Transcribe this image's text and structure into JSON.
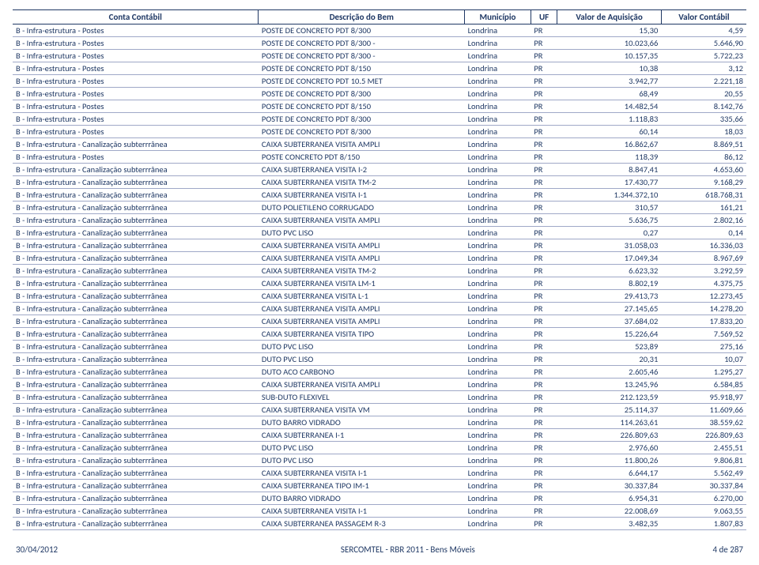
{
  "columns": [
    "Conta Contábil",
    "Descrição do Bem",
    "Município",
    "UF",
    "Valor de Aquisição",
    "Valor Contábil"
  ],
  "rows": [
    [
      "B - Infra-estrutura - Postes",
      "POSTE DE CONCRETO PDT 8/300",
      "Londrina",
      "PR",
      "15,30",
      "4,59"
    ],
    [
      "B - Infra-estrutura - Postes",
      "POSTE DE CONCRETO PDT 8/300 -",
      "Londrina",
      "PR",
      "10.023,66",
      "5.646,90"
    ],
    [
      "B - Infra-estrutura - Postes",
      "POSTE DE CONCRETO PDT 8/300 -",
      "Londrina",
      "PR",
      "10.157,35",
      "5.722,23"
    ],
    [
      "B - Infra-estrutura - Postes",
      "POSTE DE CONCRETO PDT 8/150",
      "Londrina",
      "PR",
      "10,38",
      "3,12"
    ],
    [
      "B - Infra-estrutura - Postes",
      "POSTE DE CONCRETO PDT 10.5 MET",
      "Londrina",
      "PR",
      "3.942,77",
      "2.221,18"
    ],
    [
      "B - Infra-estrutura - Postes",
      "POSTE DE CONCRETO PDT 8/300",
      "Londrina",
      "PR",
      "68,49",
      "20,55"
    ],
    [
      "B - Infra-estrutura - Postes",
      "POSTE DE CONCRETO PDT 8/150",
      "Londrina",
      "PR",
      "14.482,54",
      "8.142,76"
    ],
    [
      "B - Infra-estrutura - Postes",
      "POSTE DE CONCRETO PDT 8/300",
      "Londrina",
      "PR",
      "1.118,83",
      "335,66"
    ],
    [
      "B - Infra-estrutura - Postes",
      "POSTE DE CONCRETO PDT 8/300",
      "Londrina",
      "PR",
      "60,14",
      "18,03"
    ],
    [
      "B - Infra-estrutura - Canalização subterrrânea",
      "CAIXA SUBTERRANEA VISITA AMPLI",
      "Londrina",
      "PR",
      "16.862,67",
      "8.869,51"
    ],
    [
      "B - Infra-estrutura - Postes",
      "POSTE CONCRETO PDT 8/150",
      "Londrina",
      "PR",
      "118,39",
      "86,12"
    ],
    [
      "B - Infra-estrutura - Canalização subterrrânea",
      "CAIXA SUBTERRANEA VISITA I-2",
      "Londrina",
      "PR",
      "8.847,41",
      "4.653,60"
    ],
    [
      "B - Infra-estrutura - Canalização subterrrânea",
      "CAIXA SUBTERRANEA VISITA TM-2",
      "Londrina",
      "PR",
      "17.430,77",
      "9.168,29"
    ],
    [
      "B - Infra-estrutura - Canalização subterrrânea",
      "CAIXA SUBTERRANEA VISITA I-1",
      "Londrina",
      "PR",
      "1.344.372,10",
      "618.768,31"
    ],
    [
      "B - Infra-estrutura - Canalização subterrrânea",
      "DUTO POLIETILENO CORRUGADO",
      "Londrina",
      "PR",
      "310,57",
      "161,21"
    ],
    [
      "B - Infra-estrutura - Canalização subterrrânea",
      "CAIXA SUBTERRANEA VISITA AMPLI",
      "Londrina",
      "PR",
      "5.636,75",
      "2.802,16"
    ],
    [
      "B - Infra-estrutura - Canalização subterrrânea",
      "DUTO PVC LISO",
      "Londrina",
      "PR",
      "0,27",
      "0,14"
    ],
    [
      "B - Infra-estrutura - Canalização subterrrânea",
      "CAIXA SUBTERRANEA VISITA AMPLI",
      "Londrina",
      "PR",
      "31.058,03",
      "16.336,03"
    ],
    [
      "B - Infra-estrutura - Canalização subterrrânea",
      "CAIXA SUBTERRANEA VISITA AMPLI",
      "Londrina",
      "PR",
      "17.049,34",
      "8.967,69"
    ],
    [
      "B - Infra-estrutura - Canalização subterrrânea",
      "CAIXA SUBTERRANEA VISITA TM-2",
      "Londrina",
      "PR",
      "6.623,32",
      "3.292,59"
    ],
    [
      "B - Infra-estrutura - Canalização subterrrânea",
      "CAIXA SUBTERRANEA VISITA LM-1",
      "Londrina",
      "PR",
      "8.802,19",
      "4.375,75"
    ],
    [
      "B - Infra-estrutura - Canalização subterrrânea",
      "CAIXA SUBTERRANEA VISITA L-1",
      "Londrina",
      "PR",
      "29.413,73",
      "12.273,45"
    ],
    [
      "B - Infra-estrutura - Canalização subterrrânea",
      "CAIXA SUBTERRANEA VISITA AMPLI",
      "Londrina",
      "PR",
      "27.145,65",
      "14.278,20"
    ],
    [
      "B - Infra-estrutura - Canalização subterrrânea",
      "CAIXA SUBTERRANEA VISITA AMPLI",
      "Londrina",
      "PR",
      "37.684,02",
      "17.833,20"
    ],
    [
      "B - Infra-estrutura - Canalização subterrrânea",
      "CAIXA SUBTERRANEA VISITA TIPO",
      "Londrina",
      "PR",
      "15.226,64",
      "7.569,52"
    ],
    [
      "B - Infra-estrutura - Canalização subterrrânea",
      "DUTO PVC LISO",
      "Londrina",
      "PR",
      "523,89",
      "275,16"
    ],
    [
      "B - Infra-estrutura - Canalização subterrrânea",
      "DUTO PVC LISO",
      "Londrina",
      "PR",
      "20,31",
      "10,07"
    ],
    [
      "B - Infra-estrutura - Canalização subterrrânea",
      "DUTO ACO CARBONO",
      "Londrina",
      "PR",
      "2.605,46",
      "1.295,27"
    ],
    [
      "B - Infra-estrutura - Canalização subterrrânea",
      "CAIXA SUBTERRANEA VISITA AMPLI",
      "Londrina",
      "PR",
      "13.245,96",
      "6.584,85"
    ],
    [
      "B - Infra-estrutura - Canalização subterrrânea",
      "SUB-DUTO FLEXIVEL",
      "Londrina",
      "PR",
      "212.123,59",
      "95.918,97"
    ],
    [
      "B - Infra-estrutura - Canalização subterrrânea",
      "CAIXA SUBTERRANEA VISITA VM",
      "Londrina",
      "PR",
      "25.114,37",
      "11.609,66"
    ],
    [
      "B - Infra-estrutura - Canalização subterrrânea",
      "DUTO BARRO VIDRADO",
      "Londrina",
      "PR",
      "114.263,61",
      "38.559,62"
    ],
    [
      "B - Infra-estrutura - Canalização subterrrânea",
      "CAIXA SUBTERRANEA I-1",
      "Londrina",
      "PR",
      "226.809,63",
      "226.809,63"
    ],
    [
      "B - Infra-estrutura - Canalização subterrrânea",
      "DUTO PVC LISO",
      "Londrina",
      "PR",
      "2.976,60",
      "2.455,51"
    ],
    [
      "B - Infra-estrutura - Canalização subterrrânea",
      "DUTO PVC LISO",
      "Londrina",
      "PR",
      "11.800,26",
      "9.806,81"
    ],
    [
      "B - Infra-estrutura - Canalização subterrrânea",
      "CAIXA SUBTERRANEA VISITA I-1",
      "Londrina",
      "PR",
      "6.644,17",
      "5.562,49"
    ],
    [
      "B - Infra-estrutura - Canalização subterrrânea",
      "CAIXA SUBTERRANEA TIPO IM-1",
      "Londrina",
      "PR",
      "30.337,84",
      "30.337,84"
    ],
    [
      "B - Infra-estrutura - Canalização subterrrânea",
      "DUTO BARRO VIDRADO",
      "Londrina",
      "PR",
      "6.954,31",
      "6.270,00"
    ],
    [
      "B - Infra-estrutura - Canalização subterrrânea",
      "CAIXA SUBTERRANEA VISITA I-1",
      "Londrina",
      "PR",
      "22.008,69",
      "9.063,55"
    ],
    [
      "B - Infra-estrutura - Canalização subterrrânea",
      "CAIXA SUBTERRANEA PASSAGEM R-3",
      "Londrina",
      "PR",
      "3.482,35",
      "1.807,83"
    ]
  ],
  "footer": {
    "date": "30/04/2012",
    "title": "SERCOMTEL - RBR 2011 - Bens Móveis",
    "page": "4 de 287"
  }
}
